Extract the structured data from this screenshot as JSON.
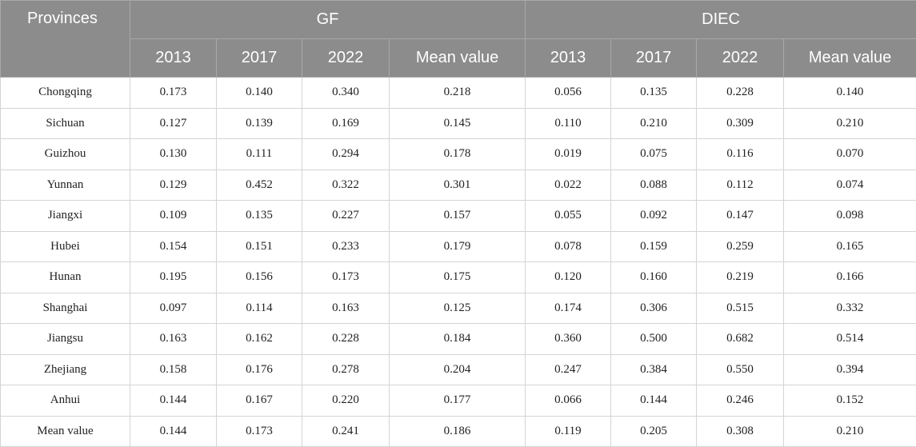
{
  "table": {
    "corner": "Provinces",
    "groups": [
      "GF",
      "DIEC"
    ],
    "subheaders": [
      [
        "2013",
        "2017",
        "2022",
        "Mean value"
      ],
      [
        "2013",
        "2017",
        "2022",
        "Mean value"
      ]
    ],
    "rows": [
      [
        "Chongqing",
        "0.173",
        "0.140",
        "0.340",
        "0.218",
        "0.056",
        "0.135",
        "0.228",
        "0.140"
      ],
      [
        "Sichuan",
        "0.127",
        "0.139",
        "0.169",
        "0.145",
        "0.110",
        "0.210",
        "0.309",
        "0.210"
      ],
      [
        "Guizhou",
        "0.130",
        "0.111",
        "0.294",
        "0.178",
        "0.019",
        "0.075",
        "0.116",
        "0.070"
      ],
      [
        "Yunnan",
        "0.129",
        "0.452",
        "0.322",
        "0.301",
        "0.022",
        "0.088",
        "0.112",
        "0.074"
      ],
      [
        "Jiangxi",
        "0.109",
        "0.135",
        "0.227",
        "0.157",
        "0.055",
        "0.092",
        "0.147",
        "0.098"
      ],
      [
        "Hubei",
        "0.154",
        "0.151",
        "0.233",
        "0.179",
        "0.078",
        "0.159",
        "0.259",
        "0.165"
      ],
      [
        "Hunan",
        "0.195",
        "0.156",
        "0.173",
        "0.175",
        "0.120",
        "0.160",
        "0.219",
        "0.166"
      ],
      [
        "Shanghai",
        "0.097",
        "0.114",
        "0.163",
        "0.125",
        "0.174",
        "0.306",
        "0.515",
        "0.332"
      ],
      [
        "Jiangsu",
        "0.163",
        "0.162",
        "0.228",
        "0.184",
        "0.360",
        "0.500",
        "0.682",
        "0.514"
      ],
      [
        "Zhejiang",
        "0.158",
        "0.176",
        "0.278",
        "0.204",
        "0.247",
        "0.384",
        "0.550",
        "0.394"
      ],
      [
        "Anhui",
        "0.144",
        "0.167",
        "0.220",
        "0.177",
        "0.066",
        "0.144",
        "0.246",
        "0.152"
      ],
      [
        "Mean value",
        "0.144",
        "0.173",
        "0.241",
        "0.186",
        "0.119",
        "0.205",
        "0.308",
        "0.210"
      ]
    ]
  }
}
